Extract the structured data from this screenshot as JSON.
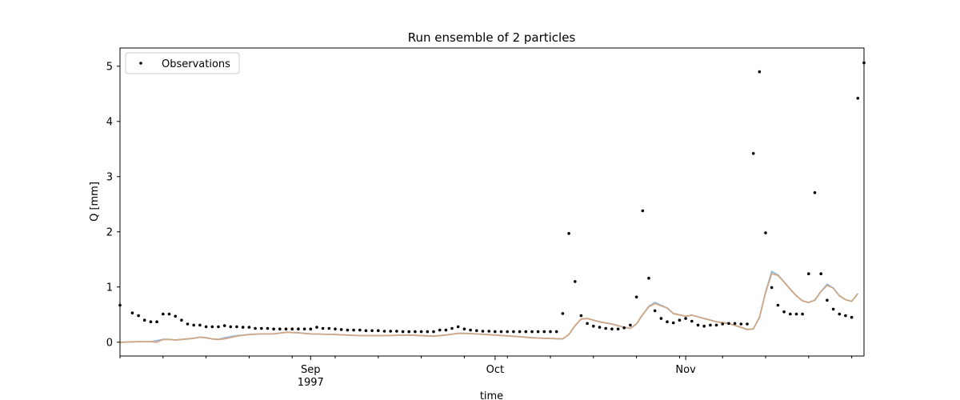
{
  "chart_data": {
    "type": "line",
    "title": "Run ensemble of 2 particles",
    "xlabel": "time",
    "ylabel": "Q [mm]",
    "start_date": "1997-08-01",
    "end_date": "1997-11-30",
    "ylim": [
      -0.25,
      5.33
    ],
    "yticks": [
      0,
      1,
      2,
      3,
      4,
      5
    ],
    "xticks": [
      {
        "date": "1997-09-01",
        "label": "Sep",
        "sublabel": "1997"
      },
      {
        "date": "1997-10-01",
        "label": "Oct",
        "sublabel": ""
      },
      {
        "date": "1997-11-01",
        "label": "Nov",
        "sublabel": ""
      }
    ],
    "legend": {
      "location": "upper-left",
      "entries": [
        "Observations"
      ]
    },
    "grid": false,
    "observations": {
      "name": "Observations",
      "color": "#000000",
      "points": [
        [
          "1997-08-01",
          0.67
        ],
        [
          "1997-08-03",
          0.53
        ],
        [
          "1997-08-04",
          0.48
        ],
        [
          "1997-08-05",
          0.4
        ],
        [
          "1997-08-06",
          0.37
        ],
        [
          "1997-08-07",
          0.37
        ],
        [
          "1997-08-08",
          0.51
        ],
        [
          "1997-08-09",
          0.51
        ],
        [
          "1997-08-10",
          0.47
        ],
        [
          "1997-08-11",
          0.4
        ],
        [
          "1997-08-12",
          0.33
        ],
        [
          "1997-08-13",
          0.31
        ],
        [
          "1997-08-14",
          0.31
        ],
        [
          "1997-08-15",
          0.28
        ],
        [
          "1997-08-16",
          0.28
        ],
        [
          "1997-08-17",
          0.28
        ],
        [
          "1997-08-18",
          0.3
        ],
        [
          "1997-08-19",
          0.28
        ],
        [
          "1997-08-20",
          0.28
        ],
        [
          "1997-08-21",
          0.27
        ],
        [
          "1997-08-22",
          0.27
        ],
        [
          "1997-08-23",
          0.25
        ],
        [
          "1997-08-24",
          0.25
        ],
        [
          "1997-08-25",
          0.25
        ],
        [
          "1997-08-26",
          0.24
        ],
        [
          "1997-08-27",
          0.24
        ],
        [
          "1997-08-28",
          0.24
        ],
        [
          "1997-08-29",
          0.24
        ],
        [
          "1997-08-30",
          0.24
        ],
        [
          "1997-08-31",
          0.24
        ],
        [
          "1997-09-01",
          0.24
        ],
        [
          "1997-09-02",
          0.27
        ],
        [
          "1997-09-03",
          0.25
        ],
        [
          "1997-09-04",
          0.25
        ],
        [
          "1997-09-05",
          0.24
        ],
        [
          "1997-09-06",
          0.23
        ],
        [
          "1997-09-07",
          0.22
        ],
        [
          "1997-09-08",
          0.22
        ],
        [
          "1997-09-09",
          0.22
        ],
        [
          "1997-09-10",
          0.21
        ],
        [
          "1997-09-11",
          0.21
        ],
        [
          "1997-09-12",
          0.21
        ],
        [
          "1997-09-13",
          0.2
        ],
        [
          "1997-09-14",
          0.2
        ],
        [
          "1997-09-15",
          0.2
        ],
        [
          "1997-09-16",
          0.19
        ],
        [
          "1997-09-17",
          0.19
        ],
        [
          "1997-09-18",
          0.19
        ],
        [
          "1997-09-19",
          0.19
        ],
        [
          "1997-09-20",
          0.19
        ],
        [
          "1997-09-21",
          0.19
        ],
        [
          "1997-09-22",
          0.22
        ],
        [
          "1997-09-23",
          0.22
        ],
        [
          "1997-09-24",
          0.25
        ],
        [
          "1997-09-25",
          0.28
        ],
        [
          "1997-09-26",
          0.24
        ],
        [
          "1997-09-27",
          0.22
        ],
        [
          "1997-09-28",
          0.21
        ],
        [
          "1997-09-29",
          0.2
        ],
        [
          "1997-09-30",
          0.2
        ],
        [
          "1997-10-01",
          0.19
        ],
        [
          "1997-10-02",
          0.19
        ],
        [
          "1997-10-03",
          0.19
        ],
        [
          "1997-10-04",
          0.19
        ],
        [
          "1997-10-05",
          0.19
        ],
        [
          "1997-10-06",
          0.19
        ],
        [
          "1997-10-07",
          0.19
        ],
        [
          "1997-10-08",
          0.19
        ],
        [
          "1997-10-09",
          0.19
        ],
        [
          "1997-10-10",
          0.19
        ],
        [
          "1997-10-11",
          0.19
        ],
        [
          "1997-10-12",
          0.52
        ],
        [
          "1997-10-13",
          1.97
        ],
        [
          "1997-10-14",
          1.1
        ],
        [
          "1997-10-15",
          0.48
        ],
        [
          "1997-10-16",
          0.34
        ],
        [
          "1997-10-17",
          0.29
        ],
        [
          "1997-10-18",
          0.27
        ],
        [
          "1997-10-19",
          0.25
        ],
        [
          "1997-10-20",
          0.24
        ],
        [
          "1997-10-21",
          0.24
        ],
        [
          "1997-10-22",
          0.26
        ],
        [
          "1997-10-23",
          0.31
        ],
        [
          "1997-10-24",
          0.82
        ],
        [
          "1997-10-25",
          2.38
        ],
        [
          "1997-10-26",
          1.16
        ],
        [
          "1997-10-27",
          0.57
        ],
        [
          "1997-10-28",
          0.43
        ],
        [
          "1997-10-29",
          0.37
        ],
        [
          "1997-10-30",
          0.35
        ],
        [
          "1997-10-31",
          0.4
        ],
        [
          "1997-11-01",
          0.43
        ],
        [
          "1997-11-02",
          0.38
        ],
        [
          "1997-11-03",
          0.31
        ],
        [
          "1997-11-04",
          0.29
        ],
        [
          "1997-11-05",
          0.31
        ],
        [
          "1997-11-06",
          0.31
        ],
        [
          "1997-11-07",
          0.33
        ],
        [
          "1997-11-08",
          0.34
        ],
        [
          "1997-11-09",
          0.34
        ],
        [
          "1997-11-10",
          0.33
        ],
        [
          "1997-11-11",
          0.33
        ],
        [
          "1997-11-12",
          3.42
        ],
        [
          "1997-11-13",
          4.9
        ],
        [
          "1997-11-14",
          1.98
        ],
        [
          "1997-11-15",
          0.99
        ],
        [
          "1997-11-16",
          0.67
        ],
        [
          "1997-11-17",
          0.55
        ],
        [
          "1997-11-18",
          0.51
        ],
        [
          "1997-11-19",
          0.51
        ],
        [
          "1997-11-20",
          0.51
        ],
        [
          "1997-11-21",
          1.24
        ],
        [
          "1997-11-22",
          2.71
        ],
        [
          "1997-11-23",
          1.24
        ],
        [
          "1997-11-24",
          0.76
        ],
        [
          "1997-11-25",
          0.6
        ],
        [
          "1997-11-26",
          0.51
        ],
        [
          "1997-11-27",
          0.48
        ],
        [
          "1997-11-28",
          0.45
        ],
        [
          "1997-11-29",
          4.42
        ],
        [
          "1997-11-30",
          5.06
        ]
      ]
    },
    "series": [
      {
        "color": "#7cb2e2",
        "points": [
          [
            "1997-08-01",
            0.0
          ],
          [
            "1997-08-04",
            0.01
          ],
          [
            "1997-08-06",
            0.01
          ],
          [
            "1997-08-07",
            0.03
          ],
          [
            "1997-08-08",
            0.05
          ],
          [
            "1997-08-09",
            0.05
          ],
          [
            "1997-08-10",
            0.04
          ],
          [
            "1997-08-11",
            0.05
          ],
          [
            "1997-08-13",
            0.07
          ],
          [
            "1997-08-14",
            0.09
          ],
          [
            "1997-08-15",
            0.08
          ],
          [
            "1997-08-16",
            0.06
          ],
          [
            "1997-08-17",
            0.05
          ],
          [
            "1997-08-18",
            0.08
          ],
          [
            "1997-08-20",
            0.12
          ],
          [
            "1997-08-22",
            0.14
          ],
          [
            "1997-08-24",
            0.15
          ],
          [
            "1997-08-26",
            0.15
          ],
          [
            "1997-08-28",
            0.18
          ],
          [
            "1997-08-30",
            0.17
          ],
          [
            "1997-09-01",
            0.15
          ],
          [
            "1997-09-05",
            0.14
          ],
          [
            "1997-09-09",
            0.12
          ],
          [
            "1997-09-13",
            0.12
          ],
          [
            "1997-09-17",
            0.13
          ],
          [
            "1997-09-21",
            0.11
          ],
          [
            "1997-09-23",
            0.13
          ],
          [
            "1997-09-25",
            0.16
          ],
          [
            "1997-09-26",
            0.16
          ],
          [
            "1997-09-28",
            0.15
          ],
          [
            "1997-10-01",
            0.13
          ],
          [
            "1997-10-05",
            0.1
          ],
          [
            "1997-10-07",
            0.08
          ],
          [
            "1997-10-09",
            0.07
          ],
          [
            "1997-10-12",
            0.06
          ],
          [
            "1997-10-13",
            0.14
          ],
          [
            "1997-10-14",
            0.3
          ],
          [
            "1997-10-15",
            0.42
          ],
          [
            "1997-10-16",
            0.43
          ],
          [
            "1997-10-18",
            0.37
          ],
          [
            "1997-10-20",
            0.33
          ],
          [
            "1997-10-22",
            0.27
          ],
          [
            "1997-10-23",
            0.25
          ],
          [
            "1997-10-24",
            0.33
          ],
          [
            "1997-10-25",
            0.5
          ],
          [
            "1997-10-26",
            0.65
          ],
          [
            "1997-10-27",
            0.72
          ],
          [
            "1997-10-29",
            0.62
          ],
          [
            "1997-10-30",
            0.52
          ],
          [
            "1997-11-01",
            0.47
          ],
          [
            "1997-11-02",
            0.49
          ],
          [
            "1997-11-04",
            0.43
          ],
          [
            "1997-11-06",
            0.37
          ],
          [
            "1997-11-08",
            0.34
          ],
          [
            "1997-11-10",
            0.27
          ],
          [
            "1997-11-11",
            0.23
          ],
          [
            "1997-11-12",
            0.24
          ],
          [
            "1997-11-13",
            0.45
          ],
          [
            "1997-11-14",
            0.91
          ],
          [
            "1997-11-15",
            1.28
          ],
          [
            "1997-11-16",
            1.22
          ],
          [
            "1997-11-17",
            1.09
          ],
          [
            "1997-11-18",
            0.96
          ],
          [
            "1997-11-19",
            0.84
          ],
          [
            "1997-11-20",
            0.75
          ],
          [
            "1997-11-21",
            0.72
          ],
          [
            "1997-11-22",
            0.76
          ],
          [
            "1997-11-23",
            0.92
          ],
          [
            "1997-11-24",
            1.05
          ],
          [
            "1997-11-25",
            0.98
          ],
          [
            "1997-11-26",
            0.84
          ],
          [
            "1997-11-27",
            0.77
          ],
          [
            "1997-11-28",
            0.74
          ],
          [
            "1997-11-29",
            0.88
          ]
        ]
      },
      {
        "color": "#d8a57a",
        "points": [
          [
            "1997-08-01",
            0.0
          ],
          [
            "1997-08-04",
            0.01
          ],
          [
            "1997-08-06",
            0.01
          ],
          [
            "1997-08-07",
            0.0
          ],
          [
            "1997-08-08",
            0.05
          ],
          [
            "1997-08-09",
            0.05
          ],
          [
            "1997-08-10",
            0.04
          ],
          [
            "1997-08-11",
            0.05
          ],
          [
            "1997-08-13",
            0.07
          ],
          [
            "1997-08-14",
            0.09
          ],
          [
            "1997-08-15",
            0.08
          ],
          [
            "1997-08-16",
            0.06
          ],
          [
            "1997-08-17",
            0.05
          ],
          [
            "1997-08-18",
            0.06
          ],
          [
            "1997-08-20",
            0.11
          ],
          [
            "1997-08-22",
            0.14
          ],
          [
            "1997-08-24",
            0.15
          ],
          [
            "1997-08-26",
            0.15
          ],
          [
            "1997-08-28",
            0.18
          ],
          [
            "1997-08-30",
            0.17
          ],
          [
            "1997-09-01",
            0.15
          ],
          [
            "1997-09-05",
            0.14
          ],
          [
            "1997-09-09",
            0.12
          ],
          [
            "1997-09-13",
            0.12
          ],
          [
            "1997-09-17",
            0.13
          ],
          [
            "1997-09-21",
            0.11
          ],
          [
            "1997-09-23",
            0.13
          ],
          [
            "1997-09-25",
            0.16
          ],
          [
            "1997-09-26",
            0.16
          ],
          [
            "1997-09-28",
            0.15
          ],
          [
            "1997-10-01",
            0.13
          ],
          [
            "1997-10-05",
            0.1
          ],
          [
            "1997-10-07",
            0.08
          ],
          [
            "1997-10-09",
            0.07
          ],
          [
            "1997-10-12",
            0.06
          ],
          [
            "1997-10-13",
            0.14
          ],
          [
            "1997-10-14",
            0.3
          ],
          [
            "1997-10-15",
            0.42
          ],
          [
            "1997-10-16",
            0.43
          ],
          [
            "1997-10-18",
            0.37
          ],
          [
            "1997-10-20",
            0.33
          ],
          [
            "1997-10-22",
            0.27
          ],
          [
            "1997-10-23",
            0.25
          ],
          [
            "1997-10-24",
            0.33
          ],
          [
            "1997-10-25",
            0.5
          ],
          [
            "1997-10-26",
            0.64
          ],
          [
            "1997-10-27",
            0.7
          ],
          [
            "1997-10-29",
            0.62
          ],
          [
            "1997-10-30",
            0.52
          ],
          [
            "1997-11-01",
            0.47
          ],
          [
            "1997-11-02",
            0.49
          ],
          [
            "1997-11-04",
            0.43
          ],
          [
            "1997-11-06",
            0.37
          ],
          [
            "1997-11-08",
            0.34
          ],
          [
            "1997-11-10",
            0.27
          ],
          [
            "1997-11-11",
            0.23
          ],
          [
            "1997-11-12",
            0.24
          ],
          [
            "1997-11-13",
            0.45
          ],
          [
            "1997-11-14",
            0.9
          ],
          [
            "1997-11-15",
            1.24
          ],
          [
            "1997-11-16",
            1.21
          ],
          [
            "1997-11-17",
            1.09
          ],
          [
            "1997-11-18",
            0.96
          ],
          [
            "1997-11-19",
            0.84
          ],
          [
            "1997-11-20",
            0.75
          ],
          [
            "1997-11-21",
            0.72
          ],
          [
            "1997-11-22",
            0.76
          ],
          [
            "1997-11-23",
            0.92
          ],
          [
            "1997-11-24",
            1.03
          ],
          [
            "1997-11-25",
            0.98
          ],
          [
            "1997-11-26",
            0.84
          ],
          [
            "1997-11-27",
            0.77
          ],
          [
            "1997-11-28",
            0.74
          ],
          [
            "1997-11-29",
            0.88
          ]
        ]
      }
    ]
  }
}
